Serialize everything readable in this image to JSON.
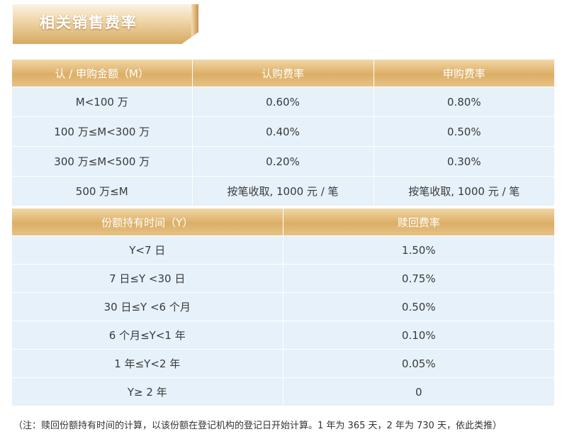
{
  "title": "相关销售费率",
  "table1": {
    "headers": [
      "认 / 申购金额（M）",
      "认购费率",
      "申购费率"
    ],
    "rows": [
      [
        "M<100 万",
        "0.60%",
        "0.80%"
      ],
      [
        "100 万≤M<300 万",
        "0.40%",
        "0.50%"
      ],
      [
        "300 万≤M<500 万",
        "0.20%",
        "0.30%"
      ],
      [
        "500 万≤M",
        "按笔收取, 1000 元 / 笔",
        "按笔收取, 1000 元 / 笔"
      ]
    ]
  },
  "table2": {
    "headers": [
      "份额持有时间（Y）",
      "赎回费率"
    ],
    "rows": [
      [
        "Y<7 日",
        "1.50%"
      ],
      [
        "7 日≤Y <30 日",
        "0.75%"
      ],
      [
        "30 日≤Y <6 个月",
        "0.50%"
      ],
      [
        "6 个月≤Y<1 年",
        "0.10%"
      ],
      [
        "1 年≤Y<2 年",
        "0.05%"
      ],
      [
        "Y≥ 2 年",
        "0"
      ]
    ]
  },
  "note": "（注：赎回份额持有时间的计算，以该份额在登记机构的登记日开始计算。1 年为 365 天，2 年为 730 天，依此类推）"
}
